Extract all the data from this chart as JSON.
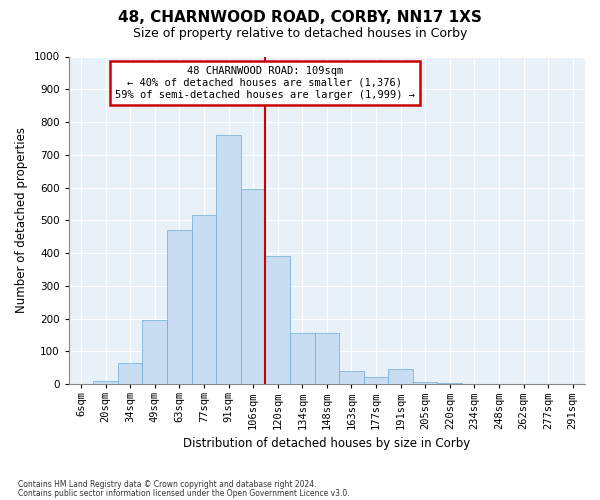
{
  "title": "48, CHARNWOOD ROAD, CORBY, NN17 1XS",
  "subtitle": "Size of property relative to detached houses in Corby",
  "xlabel": "Distribution of detached houses by size in Corby",
  "ylabel": "Number of detached properties",
  "footnote1": "Contains HM Land Registry data © Crown copyright and database right 2024.",
  "footnote2": "Contains public sector information licensed under the Open Government Licence v3.0.",
  "bar_labels": [
    "6sqm",
    "20sqm",
    "34sqm",
    "49sqm",
    "63sqm",
    "77sqm",
    "91sqm",
    "106sqm",
    "120sqm",
    "134sqm",
    "148sqm",
    "163sqm",
    "177sqm",
    "191sqm",
    "205sqm",
    "220sqm",
    "234sqm",
    "248sqm",
    "262sqm",
    "277sqm",
    "291sqm"
  ],
  "bar_values": [
    0,
    10,
    65,
    195,
    470,
    515,
    760,
    595,
    390,
    155,
    155,
    40,
    22,
    45,
    8,
    3,
    2,
    1,
    0,
    0,
    0
  ],
  "bar_color": "#c9ddf2",
  "bar_edge_color": "#6aaad4",
  "vline_color": "#cc0000",
  "annotation_text": "48 CHARNWOOD ROAD: 109sqm\n← 40% of detached houses are smaller (1,376)\n59% of semi-detached houses are larger (1,999) →",
  "annotation_box_color": "#cc0000",
  "ylim": [
    0,
    1000
  ],
  "yticks": [
    0,
    100,
    200,
    300,
    400,
    500,
    600,
    700,
    800,
    900,
    1000
  ],
  "background_color": "#e8f0f8",
  "title_fontsize": 11,
  "subtitle_fontsize": 9,
  "xlabel_fontsize": 8.5,
  "ylabel_fontsize": 8.5,
  "tick_fontsize": 7.5,
  "annotation_fontsize": 7.5
}
